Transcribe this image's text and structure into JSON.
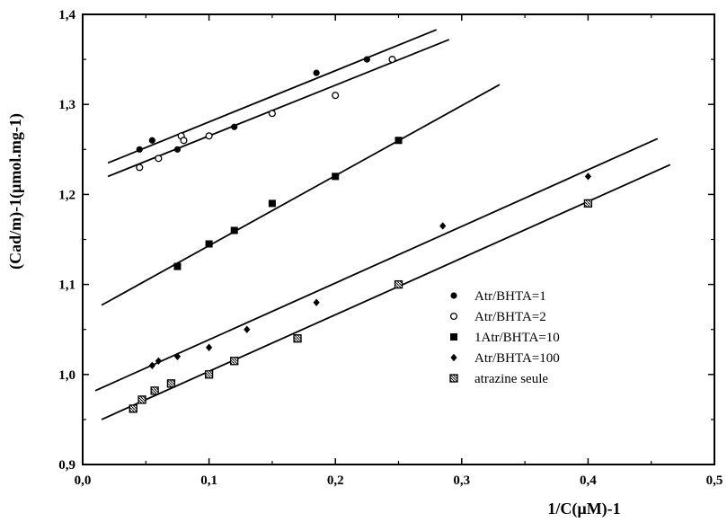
{
  "chart_data": {
    "type": "scatter",
    "title": "",
    "xlabel": "1/C(µM)-1",
    "ylabel": "(Cad/m)-1(µmol.mg-1)",
    "xlim": [
      0.0,
      0.5
    ],
    "ylim": [
      0.9,
      1.4
    ],
    "xticks": [
      "0,0",
      "0,1",
      "0,2",
      "0,3",
      "0,4",
      "0,5"
    ],
    "yticks": [
      "0,9",
      "1,0",
      "1,1",
      "1,2",
      "1,3",
      "1,4"
    ],
    "grid": false,
    "legend_position": "right",
    "series": [
      {
        "name": "Atr/BHTA=1",
        "marker": "filled-circle",
        "points": [
          [
            0.045,
            1.25
          ],
          [
            0.055,
            1.26
          ],
          [
            0.075,
            1.25
          ],
          [
            0.12,
            1.275
          ],
          [
            0.185,
            1.335
          ],
          [
            0.225,
            1.35
          ]
        ],
        "fit": [
          [
            0.02,
            1.235
          ],
          [
            0.28,
            1.383
          ]
        ]
      },
      {
        "name": "Atr/BHTA=2",
        "marker": "open-circle",
        "points": [
          [
            0.045,
            1.23
          ],
          [
            0.06,
            1.24
          ],
          [
            0.078,
            1.265
          ],
          [
            0.08,
            1.26
          ],
          [
            0.1,
            1.265
          ],
          [
            0.15,
            1.29
          ],
          [
            0.2,
            1.31
          ],
          [
            0.245,
            1.35
          ]
        ],
        "fit": [
          [
            0.02,
            1.22
          ],
          [
            0.29,
            1.372
          ]
        ]
      },
      {
        "name": "1Atr/BHTA=10",
        "marker": "filled-square",
        "points": [
          [
            0.075,
            1.12
          ],
          [
            0.1,
            1.145
          ],
          [
            0.12,
            1.16
          ],
          [
            0.15,
            1.19
          ],
          [
            0.2,
            1.22
          ],
          [
            0.25,
            1.26
          ]
        ],
        "fit": [
          [
            0.015,
            1.077
          ],
          [
            0.33,
            1.322
          ]
        ]
      },
      {
        "name": "Atr/BHTA=100",
        "marker": "filled-diamond",
        "points": [
          [
            0.055,
            1.01
          ],
          [
            0.06,
            1.015
          ],
          [
            0.075,
            1.02
          ],
          [
            0.1,
            1.03
          ],
          [
            0.13,
            1.05
          ],
          [
            0.185,
            1.08
          ],
          [
            0.285,
            1.165
          ],
          [
            0.4,
            1.22
          ]
        ],
        "fit": [
          [
            0.01,
            0.982
          ],
          [
            0.455,
            1.262
          ]
        ]
      },
      {
        "name": "atrazine seule",
        "marker": "hatched-square",
        "points": [
          [
            0.04,
            0.962
          ],
          [
            0.047,
            0.972
          ],
          [
            0.057,
            0.982
          ],
          [
            0.07,
            0.99
          ],
          [
            0.1,
            1.0
          ],
          [
            0.12,
            1.015
          ],
          [
            0.17,
            1.04
          ],
          [
            0.25,
            1.1
          ],
          [
            0.4,
            1.19
          ]
        ],
        "fit": [
          [
            0.015,
            0.95
          ],
          [
            0.465,
            1.233
          ]
        ]
      }
    ]
  }
}
